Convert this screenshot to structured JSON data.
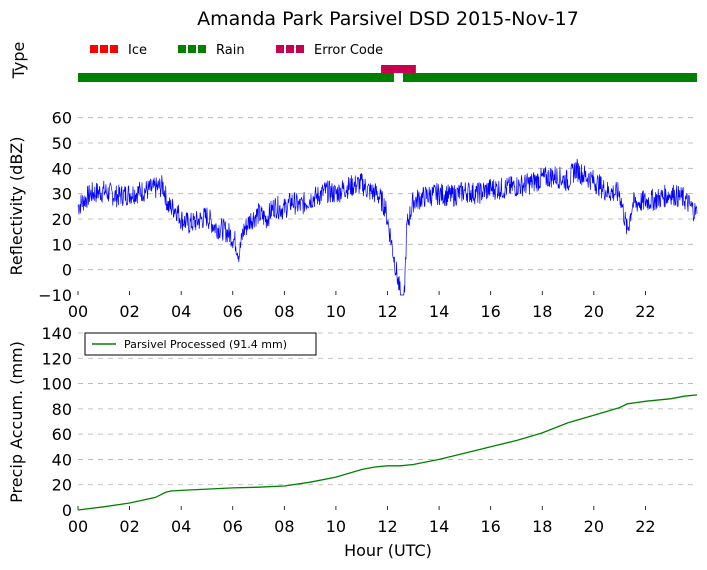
{
  "title": "Amanda Park Parsivel DSD 2015-Nov-17",
  "colors": {
    "ice": "#ff0000",
    "rain": "#008000",
    "error": "#c8004f",
    "reflectivity": "#0000ff",
    "accum": "#008000",
    "grid": "#b0b0b0"
  },
  "chart_data": [
    {
      "type": "timeline",
      "ylabel": "Type",
      "legend": [
        {
          "name": "Ice",
          "color": "#ff0000"
        },
        {
          "name": "Rain",
          "color": "#008000"
        },
        {
          "name": "Error Code",
          "color": "#c8004f"
        }
      ],
      "legend_placement": "top-left",
      "xlim": [
        0,
        24
      ],
      "segments": [
        {
          "type": "Rain",
          "start": 0.0,
          "end": 12.25
        },
        {
          "type": "Error Code",
          "start": 11.75,
          "end": 13.1
        },
        {
          "type": "Rain",
          "start": 12.6,
          "end": 24.0
        }
      ]
    },
    {
      "type": "line",
      "ylabel": "Reflectivity (dBZ)",
      "xlim": [
        0,
        24
      ],
      "ylim": [
        -10,
        65
      ],
      "yticks": [
        -10,
        0,
        10,
        20,
        30,
        40,
        50,
        60
      ],
      "xticks": [
        "00",
        "02",
        "04",
        "06",
        "08",
        "10",
        "12",
        "14",
        "16",
        "18",
        "20",
        "22"
      ],
      "grid": "horizontal dashed",
      "series": [
        {
          "x": [
            0.0,
            0.5,
            1.0,
            1.5,
            2.0,
            2.5,
            3.0,
            3.3,
            3.5,
            3.8,
            4.0,
            4.3,
            4.6,
            5.0,
            5.3,
            5.6,
            5.9,
            6.1,
            6.25,
            6.4,
            6.7,
            7.0,
            7.3,
            7.6,
            8.0,
            8.3,
            8.6,
            9.0,
            9.3,
            9.6,
            10.0,
            10.3,
            10.6,
            11.0,
            11.3,
            11.6,
            11.9,
            12.05,
            12.5,
            12.65,
            12.75,
            13.0,
            13.5,
            14.0,
            14.5,
            15.0,
            15.5,
            16.0,
            16.5,
            17.0,
            17.5,
            18.0,
            18.5,
            19.0,
            19.3,
            19.5,
            20.0,
            20.5,
            21.0,
            21.2,
            21.3,
            21.5,
            22.0,
            22.5,
            23.0,
            23.5,
            24.0
          ],
          "values": [
            25,
            30,
            31,
            29,
            30,
            31,
            32,
            33,
            25,
            24,
            20,
            18,
            19,
            21,
            17,
            16,
            14,
            11,
            6,
            15,
            20,
            22,
            20,
            25,
            24,
            27,
            25,
            28,
            29,
            31,
            30,
            32,
            33,
            34,
            31,
            30,
            25,
            17,
            -10,
            -10,
            17,
            27,
            29,
            30,
            29,
            31,
            30,
            32,
            32,
            33,
            34,
            36,
            37,
            35,
            40,
            38,
            35,
            31,
            30,
            20,
            15,
            26,
            27,
            28,
            30,
            28,
            22
          ]
        }
      ]
    },
    {
      "type": "line",
      "xlabel": "Hour (UTC)",
      "ylabel": "Precip Accum. (mm)",
      "xlim": [
        0,
        24
      ],
      "ylim": [
        0,
        140
      ],
      "yticks": [
        0,
        20,
        40,
        60,
        80,
        100,
        120,
        140
      ],
      "xticks": [
        "00",
        "02",
        "04",
        "06",
        "08",
        "10",
        "12",
        "14",
        "16",
        "18",
        "20",
        "22"
      ],
      "grid": "horizontal dashed",
      "legend_placement": "top-left",
      "series": [
        {
          "name": "Parsivel Processed (91.4 mm)",
          "x": [
            0,
            1,
            2,
            3,
            3.4,
            3.6,
            4,
            5,
            6,
            7,
            8,
            9,
            10,
            11,
            11.5,
            12,
            12.5,
            13,
            14,
            15,
            16,
            17,
            18,
            19,
            20,
            21,
            21.3,
            22,
            23,
            23.5,
            24
          ],
          "values": [
            0,
            2.5,
            5.5,
            10,
            14,
            15,
            15.5,
            16.5,
            17.5,
            18,
            19,
            22,
            26,
            32,
            34,
            35,
            35,
            36,
            40,
            45,
            50,
            55,
            61,
            69,
            75,
            81,
            84,
            86,
            88,
            90,
            91
          ]
        }
      ]
    }
  ]
}
